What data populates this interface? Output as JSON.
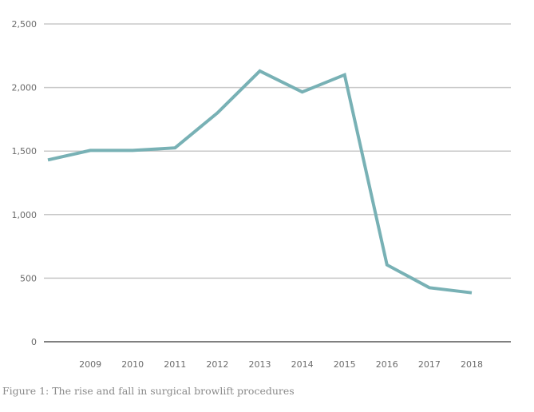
{
  "chart_data": {
    "type": "line",
    "title": "",
    "xlabel": "",
    "ylabel": "",
    "x": [
      2008,
      2009,
      2010,
      2011,
      2012,
      2013,
      2014,
      2015,
      2016,
      2017,
      2018
    ],
    "x_tick_labels": [
      "2009",
      "2010",
      "2011",
      "2012",
      "2013",
      "2014",
      "2015",
      "2016",
      "2017",
      "2018"
    ],
    "x_tick_values": [
      2009,
      2010,
      2011,
      2012,
      2013,
      2014,
      2015,
      2016,
      2017,
      2018
    ],
    "y_tick_labels": [
      "0",
      "500",
      "1,000",
      "1,500",
      "2,000",
      "2,500"
    ],
    "y_tick_values": [
      0,
      500,
      1000,
      1500,
      2000,
      2500
    ],
    "ylim": [
      0,
      2500
    ],
    "xlim": [
      2008,
      2019
    ],
    "grid": "horizontal",
    "legend": "none",
    "series": [
      {
        "values": [
          1430,
          1505,
          1505,
          1525,
          1800,
          2130,
          1965,
          2100,
          605,
          425,
          385
        ]
      }
    ],
    "colors": {
      "line": "#78b1b5",
      "grid": "#c8c8c8",
      "baseline": "#808080"
    }
  },
  "caption": "Figure 1: The rise and fall in surgical browlift procedures"
}
